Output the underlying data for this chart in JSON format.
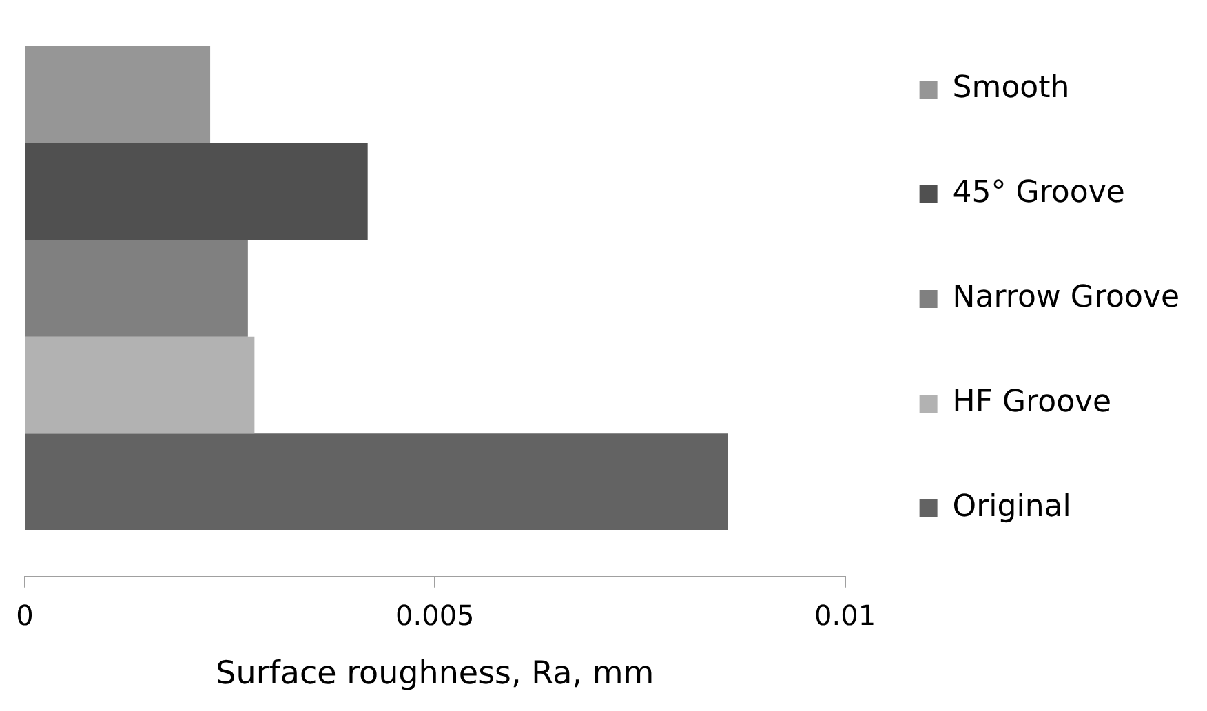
{
  "chart_data": {
    "type": "bar",
    "orientation": "horizontal",
    "categories": [
      null
    ],
    "series": [
      {
        "name": "Smooth",
        "color": "#969696",
        "values": [
          0.00226
        ]
      },
      {
        "name": "45° Groove",
        "color": "#505050",
        "values": [
          0.00418
        ]
      },
      {
        "name": "Narrow Groove",
        "color": "#808080",
        "values": [
          0.00272
        ]
      },
      {
        "name": "HF Groove",
        "color": "#b2b2b2",
        "values": [
          0.0028
        ]
      },
      {
        "name": "Original",
        "color": "#636363",
        "values": [
          0.00857
        ]
      }
    ],
    "xlabel": "Surface roughness, Ra, mm",
    "xlim": [
      0,
      0.01
    ],
    "xticks": [
      0,
      0.005,
      0.01
    ],
    "grid": false,
    "legend": "right"
  }
}
